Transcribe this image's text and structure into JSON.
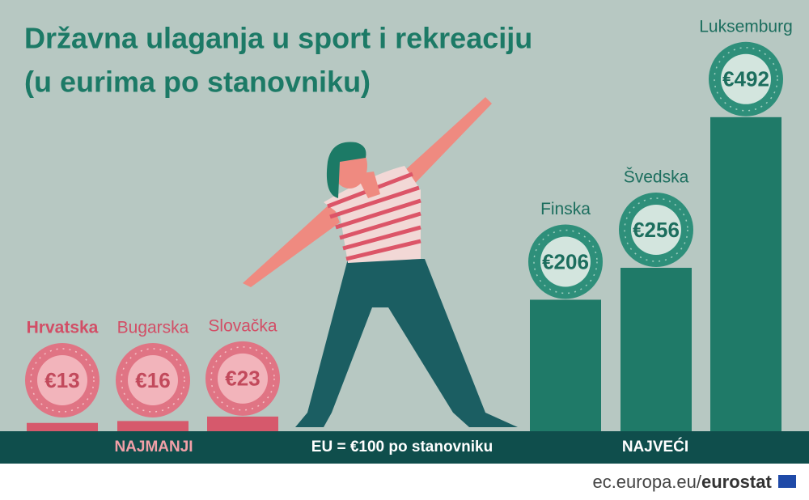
{
  "chart_data": {
    "type": "bar",
    "title": "Državna ulaganja u sport i rekreaciju",
    "subtitle": "(u eurima po stanovniku)",
    "categories": [
      "Hrvatska",
      "Bugarska",
      "Slovačka",
      "Finska",
      "Švedska",
      "Luksemburg"
    ],
    "values": [
      13,
      16,
      23,
      206,
      256,
      492
    ],
    "value_labels": [
      "€13",
      "€16",
      "€23",
      "€206",
      "€256",
      "€492"
    ],
    "colors": [
      "#d6596c",
      "#d6596c",
      "#d6596c",
      "#1f7a68",
      "#1f7a68",
      "#1f7a68"
    ],
    "annotations": {
      "lowest": "NAJMANJI",
      "reference": "EU = €100 po stanovniku",
      "highest": "NAJVEĆI"
    }
  },
  "footer": {
    "site": "ec.europa.eu/",
    "brand": "eurostat"
  }
}
